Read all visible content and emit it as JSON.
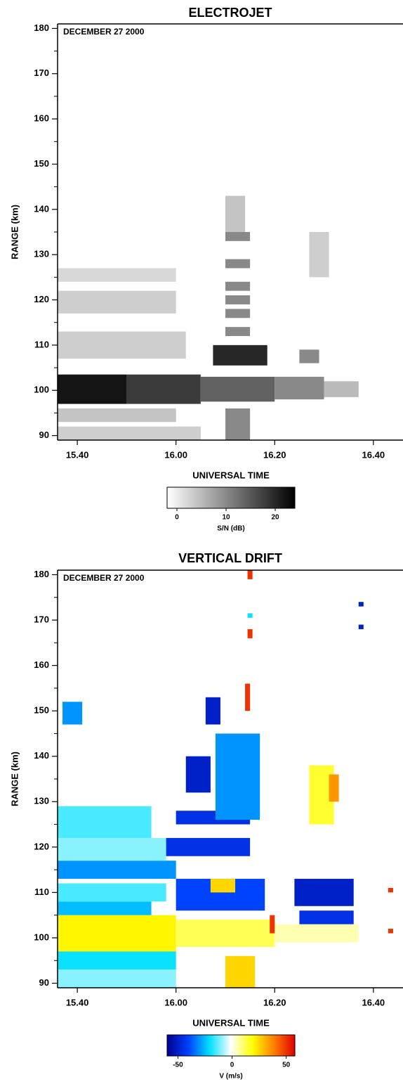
{
  "chart_data": [
    {
      "type": "heatmap",
      "title": "ELECTROJET",
      "annotation": "DECEMBER 27 2000",
      "ylabel": "RANGE (km)",
      "xlabel": "UNIVERSAL TIME",
      "colorbar_label": "S/N (dB)",
      "xlim": [
        936,
        1006
      ],
      "ylim": [
        89,
        181
      ],
      "xticks": [
        {
          "value": 940,
          "label": "15.40"
        },
        {
          "value": 960,
          "label": "16.00"
        },
        {
          "value": 980,
          "label": "16.20"
        },
        {
          "value": 1000,
          "label": "16.40"
        }
      ],
      "yticks": [
        90,
        100,
        110,
        120,
        130,
        140,
        150,
        160,
        170,
        180
      ],
      "yticks_minor": [
        95,
        105,
        115,
        125,
        135,
        145,
        155,
        165,
        175
      ],
      "clim": [
        -2,
        24
      ],
      "cticks": [
        0,
        10,
        20
      ],
      "colormap": [
        "#ffffff",
        "#000000"
      ],
      "cells": [
        {
          "x": [
            936,
            950
          ],
          "y": [
            97,
            103.5
          ],
          "value": 22
        },
        {
          "x": [
            950,
            965
          ],
          "y": [
            97,
            103.5
          ],
          "value": 18
        },
        {
          "x": [
            965,
            980
          ],
          "y": [
            97.5,
            103
          ],
          "value": 14
        },
        {
          "x": [
            980,
            990
          ],
          "y": [
            98,
            103
          ],
          "value": 10
        },
        {
          "x": [
            990,
            997
          ],
          "y": [
            98.5,
            102
          ],
          "value": 5
        },
        {
          "x": [
            936,
            960
          ],
          "y": [
            93,
            96
          ],
          "value": 4
        },
        {
          "x": [
            936,
            965
          ],
          "y": [
            89,
            92
          ],
          "value": 3
        },
        {
          "x": [
            936,
            962
          ],
          "y": [
            107,
            113
          ],
          "value": 3
        },
        {
          "x": [
            936,
            960
          ],
          "y": [
            117,
            122
          ],
          "value": 3
        },
        {
          "x": [
            936,
            960
          ],
          "y": [
            124,
            127
          ],
          "value": 2
        },
        {
          "x": [
            967.5,
            978.5
          ],
          "y": [
            105.5,
            110
          ],
          "value": 20
        },
        {
          "x": [
            970,
            975
          ],
          "y": [
            89,
            96
          ],
          "value": 10
        },
        {
          "x": [
            970,
            975
          ],
          "y": [
            112,
            114
          ],
          "value": 10
        },
        {
          "x": [
            970,
            975
          ],
          "y": [
            116,
            118
          ],
          "value": 10
        },
        {
          "x": [
            970,
            975
          ],
          "y": [
            119,
            121
          ],
          "value": 10
        },
        {
          "x": [
            970,
            975
          ],
          "y": [
            122,
            124
          ],
          "value": 10
        },
        {
          "x": [
            970,
            975
          ],
          "y": [
            127,
            129
          ],
          "value": 10
        },
        {
          "x": [
            970,
            975
          ],
          "y": [
            133,
            135
          ],
          "value": 10
        },
        {
          "x": [
            970,
            974
          ],
          "y": [
            135,
            143
          ],
          "value": 4
        },
        {
          "x": [
            985,
            989
          ],
          "y": [
            106,
            109
          ],
          "value": 10
        },
        {
          "x": [
            987,
            991
          ],
          "y": [
            125,
            135
          ],
          "value": 3
        }
      ]
    },
    {
      "type": "heatmap",
      "title": "VERTICAL DRIFT",
      "annotation": "DECEMBER 27 2000",
      "ylabel": "RANGE (km)",
      "xlabel": "UNIVERSAL TIME",
      "colorbar_label": "V (m/s)",
      "xlim": [
        936,
        1006
      ],
      "ylim": [
        89,
        181
      ],
      "xticks": [
        {
          "value": 940,
          "label": "15.40"
        },
        {
          "value": 960,
          "label": "16.00"
        },
        {
          "value": 980,
          "label": "16.20"
        },
        {
          "value": 1000,
          "label": "16.40"
        }
      ],
      "yticks": [
        90,
        100,
        110,
        120,
        130,
        140,
        150,
        160,
        170,
        180
      ],
      "yticks_minor": [
        95,
        105,
        115,
        125,
        135,
        145,
        155,
        165,
        175
      ],
      "clim": [
        -60,
        58
      ],
      "cticks": [
        -50,
        0,
        50
      ],
      "colormap": [
        "#00008f",
        "#0040ff",
        "#00e0ff",
        "#ffffff",
        "#ffff00",
        "#ff8000",
        "#e00000"
      ],
      "cells": [
        {
          "x": [
            936,
            960
          ],
          "y": [
            97,
            105
          ],
          "value": 20
        },
        {
          "x": [
            960,
            980
          ],
          "y": [
            98,
            104
          ],
          "value": 12
        },
        {
          "x": [
            980,
            997
          ],
          "y": [
            99,
            103
          ],
          "value": 5
        },
        {
          "x": [
            936,
            960
          ],
          "y": [
            93,
            97
          ],
          "value": -20
        },
        {
          "x": [
            936,
            960
          ],
          "y": [
            89,
            93
          ],
          "value": -10
        },
        {
          "x": [
            936,
            955
          ],
          "y": [
            105,
            108
          ],
          "value": -25
        },
        {
          "x": [
            936,
            958
          ],
          "y": [
            108,
            112
          ],
          "value": -15
        },
        {
          "x": [
            936,
            960
          ],
          "y": [
            113,
            117
          ],
          "value": -30
        },
        {
          "x": [
            936,
            958
          ],
          "y": [
            117,
            122
          ],
          "value": -10
        },
        {
          "x": [
            936,
            955
          ],
          "y": [
            122,
            129
          ],
          "value": -15
        },
        {
          "x": [
            958,
            975
          ],
          "y": [
            118,
            122
          ],
          "value": -45
        },
        {
          "x": [
            960,
            975
          ],
          "y": [
            125,
            128
          ],
          "value": -45
        },
        {
          "x": [
            960,
            978
          ],
          "y": [
            106,
            113
          ],
          "value": -40
        },
        {
          "x": [
            967,
            972
          ],
          "y": [
            110,
            113
          ],
          "value": 25
        },
        {
          "x": [
            970,
            976
          ],
          "y": [
            89,
            96
          ],
          "value": 25
        },
        {
          "x": [
            968,
            977
          ],
          "y": [
            126,
            145
          ],
          "value": -30
        },
        {
          "x": [
            962,
            967
          ],
          "y": [
            132,
            140
          ],
          "value": -50
        },
        {
          "x": [
            966,
            969
          ],
          "y": [
            147,
            153
          ],
          "value": -50
        },
        {
          "x": [
            984,
            996
          ],
          "y": [
            107,
            113
          ],
          "value": -50
        },
        {
          "x": [
            985,
            996
          ],
          "y": [
            103,
            106
          ],
          "value": -45
        },
        {
          "x": [
            987,
            992
          ],
          "y": [
            125,
            138
          ],
          "value": 15
        },
        {
          "x": [
            991,
            993
          ],
          "y": [
            130,
            136
          ],
          "value": 35
        },
        {
          "x": [
            979,
            980
          ],
          "y": [
            101,
            105
          ],
          "value": 50
        },
        {
          "x": [
            937,
            941
          ],
          "y": [
            147,
            152
          ],
          "value": -30
        },
        {
          "x": [
            974.5,
            975.5
          ],
          "y": [
            179,
            181
          ],
          "value": 50
        },
        {
          "x": [
            974.5,
            975.5
          ],
          "y": [
            170.5,
            171.5
          ],
          "value": -20
        },
        {
          "x": [
            974.5,
            975.5
          ],
          "y": [
            166,
            168
          ],
          "value": 50
        },
        {
          "x": [
            974,
            975
          ],
          "y": [
            150,
            156
          ],
          "value": 50
        },
        {
          "x": [
            1003,
            1004
          ],
          "y": [
            101,
            102
          ],
          "value": 50
        },
        {
          "x": [
            1003,
            1004
          ],
          "y": [
            110,
            111
          ],
          "value": 50
        },
        {
          "x": [
            997,
            998
          ],
          "y": [
            173,
            174
          ],
          "value": -50
        },
        {
          "x": [
            997,
            998
          ],
          "y": [
            168,
            169
          ],
          "value": -50
        }
      ]
    }
  ]
}
